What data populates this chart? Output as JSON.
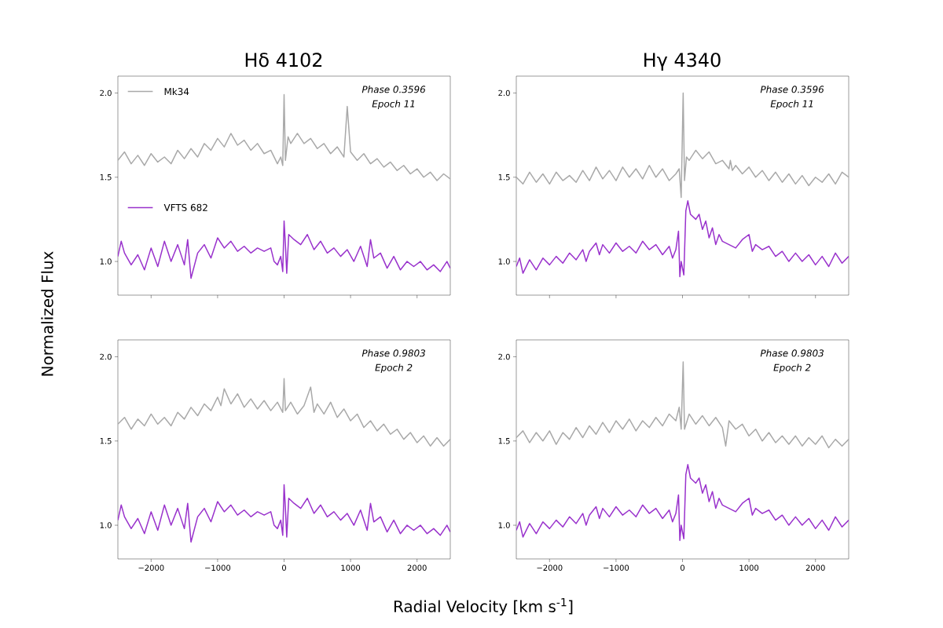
{
  "chart_data": [
    {
      "type": "line",
      "title": "Hδ 4102",
      "ylabel": "Normalized Flux",
      "xlim": [
        -2500,
        2500
      ],
      "ylim": [
        0.8,
        2.1
      ],
      "xticks": [
        {
          "value": -2000,
          "label": null
        },
        {
          "value": -1000,
          "label": null
        },
        {
          "value": 0,
          "label": null
        },
        {
          "value": 1000,
          "label": null
        },
        {
          "value": 2000,
          "label": null
        }
      ],
      "yticks": [
        {
          "value": 1,
          "label": "1.0"
        },
        {
          "value": 1.5,
          "label": "1.5"
        },
        {
          "value": 2,
          "label": "2.0"
        }
      ],
      "tick_labels": "y",
      "legend": "top left",
      "annotations": [
        "Phase 0.3596",
        "Epoch 11"
      ],
      "series": [
        {
          "name": "Mk34",
          "color": "#a9a9a9",
          "x": [
            -2500,
            -2400,
            -2300,
            -2200,
            -2100,
            -2000,
            -1900,
            -1800,
            -1700,
            -1600,
            -1500,
            -1400,
            -1300,
            -1200,
            -1100,
            -1000,
            -900,
            -800,
            -700,
            -600,
            -500,
            -400,
            -300,
            -200,
            -100,
            -50,
            -20,
            0,
            20,
            60,
            100,
            200,
            300,
            400,
            500,
            600,
            700,
            800,
            900,
            950,
            1000,
            1100,
            1200,
            1300,
            1400,
            1500,
            1600,
            1700,
            1800,
            1900,
            2000,
            2100,
            2200,
            2300,
            2400,
            2500
          ],
          "values": [
            1.6,
            1.65,
            1.58,
            1.63,
            1.57,
            1.64,
            1.59,
            1.62,
            1.58,
            1.66,
            1.61,
            1.67,
            1.62,
            1.7,
            1.66,
            1.73,
            1.68,
            1.76,
            1.69,
            1.72,
            1.66,
            1.7,
            1.64,
            1.66,
            1.58,
            1.62,
            1.57,
            1.99,
            1.6,
            1.74,
            1.7,
            1.76,
            1.7,
            1.73,
            1.67,
            1.7,
            1.64,
            1.68,
            1.62,
            1.92,
            1.65,
            1.6,
            1.64,
            1.58,
            1.61,
            1.56,
            1.59,
            1.54,
            1.57,
            1.52,
            1.55,
            1.5,
            1.53,
            1.48,
            1.52,
            1.49
          ]
        },
        {
          "name": "VFTS 682",
          "color": "#9932cc",
          "x": [
            -2500,
            -2450,
            -2400,
            -2300,
            -2200,
            -2100,
            -2000,
            -1900,
            -1800,
            -1700,
            -1600,
            -1500,
            -1450,
            -1400,
            -1300,
            -1200,
            -1100,
            -1000,
            -900,
            -800,
            -700,
            -600,
            -500,
            -400,
            -300,
            -200,
            -150,
            -100,
            -50,
            -20,
            0,
            20,
            40,
            70,
            150,
            250,
            350,
            450,
            550,
            650,
            750,
            850,
            950,
            1050,
            1150,
            1250,
            1300,
            1350,
            1450,
            1550,
            1650,
            1750,
            1850,
            1950,
            2050,
            2150,
            2250,
            2350,
            2450,
            2500
          ],
          "values": [
            1.03,
            1.12,
            1.05,
            0.98,
            1.04,
            0.95,
            1.08,
            0.97,
            1.12,
            1.0,
            1.1,
            0.98,
            1.13,
            0.9,
            1.05,
            1.1,
            1.02,
            1.14,
            1.08,
            1.12,
            1.06,
            1.09,
            1.05,
            1.08,
            1.06,
            1.08,
            1.0,
            0.98,
            1.03,
            0.94,
            1.24,
            1.1,
            0.93,
            1.16,
            1.13,
            1.1,
            1.16,
            1.07,
            1.12,
            1.05,
            1.08,
            1.03,
            1.07,
            1.0,
            1.09,
            0.97,
            1.13,
            1.02,
            1.05,
            0.96,
            1.03,
            0.95,
            1.0,
            0.97,
            1.0,
            0.95,
            0.98,
            0.94,
            1.0,
            0.96
          ]
        }
      ]
    },
    {
      "type": "line",
      "title": "Hγ 4340",
      "xlim": [
        -2500,
        2500
      ],
      "ylim": [
        0.8,
        2.1
      ],
      "xticks": [
        {
          "value": -2000,
          "label": null
        },
        {
          "value": -1000,
          "label": null
        },
        {
          "value": 0,
          "label": null
        },
        {
          "value": 1000,
          "label": null
        },
        {
          "value": 2000,
          "label": null
        }
      ],
      "yticks": [
        {
          "value": 1,
          "label": "1.0"
        },
        {
          "value": 1.5,
          "label": "1.5"
        },
        {
          "value": 2,
          "label": "2.0"
        }
      ],
      "tick_labels": "y",
      "annotations": [
        "Phase 0.3596",
        "Epoch 11"
      ],
      "series": [
        {
          "color": "#a9a9a9",
          "x": [
            -2500,
            -2400,
            -2300,
            -2200,
            -2100,
            -2000,
            -1900,
            -1800,
            -1700,
            -1600,
            -1500,
            -1400,
            -1300,
            -1200,
            -1100,
            -1000,
            -900,
            -800,
            -700,
            -600,
            -500,
            -400,
            -300,
            -200,
            -100,
            -50,
            -20,
            10,
            30,
            60,
            100,
            200,
            300,
            400,
            500,
            600,
            700,
            720,
            750,
            800,
            900,
            1000,
            1100,
            1200,
            1300,
            1400,
            1500,
            1600,
            1700,
            1800,
            1900,
            2000,
            2100,
            2200,
            2300,
            2400,
            2500
          ],
          "values": [
            1.5,
            1.46,
            1.53,
            1.47,
            1.52,
            1.46,
            1.53,
            1.48,
            1.51,
            1.47,
            1.54,
            1.48,
            1.56,
            1.49,
            1.54,
            1.48,
            1.56,
            1.5,
            1.55,
            1.49,
            1.57,
            1.5,
            1.55,
            1.48,
            1.52,
            1.55,
            1.38,
            2.0,
            1.48,
            1.62,
            1.6,
            1.66,
            1.61,
            1.65,
            1.58,
            1.6,
            1.55,
            1.6,
            1.54,
            1.57,
            1.52,
            1.56,
            1.5,
            1.54,
            1.48,
            1.53,
            1.47,
            1.52,
            1.46,
            1.51,
            1.45,
            1.5,
            1.47,
            1.52,
            1.46,
            1.53,
            1.5
          ]
        },
        {
          "color": "#9932cc",
          "x": [
            -2500,
            -2450,
            -2400,
            -2300,
            -2200,
            -2100,
            -2000,
            -1900,
            -1800,
            -1700,
            -1600,
            -1500,
            -1450,
            -1400,
            -1300,
            -1250,
            -1200,
            -1100,
            -1000,
            -900,
            -800,
            -700,
            -600,
            -500,
            -400,
            -300,
            -200,
            -150,
            -100,
            -60,
            -40,
            -20,
            20,
            50,
            80,
            120,
            200,
            250,
            300,
            350,
            400,
            450,
            500,
            550,
            600,
            700,
            800,
            900,
            1000,
            1050,
            1100,
            1200,
            1300,
            1400,
            1500,
            1600,
            1700,
            1800,
            1900,
            2000,
            2100,
            2200,
            2300,
            2400,
            2500
          ],
          "values": [
            0.97,
            1.02,
            0.93,
            1.01,
            0.95,
            1.02,
            0.98,
            1.03,
            0.99,
            1.05,
            1.01,
            1.07,
            1.0,
            1.06,
            1.11,
            1.04,
            1.1,
            1.05,
            1.11,
            1.06,
            1.09,
            1.05,
            1.12,
            1.07,
            1.1,
            1.04,
            1.09,
            1.02,
            1.07,
            1.18,
            0.91,
            1.0,
            0.92,
            1.3,
            1.36,
            1.28,
            1.25,
            1.28,
            1.19,
            1.24,
            1.14,
            1.2,
            1.1,
            1.16,
            1.12,
            1.1,
            1.08,
            1.13,
            1.16,
            1.06,
            1.1,
            1.07,
            1.09,
            1.03,
            1.06,
            1.0,
            1.05,
            1.0,
            1.04,
            0.98,
            1.03,
            0.97,
            1.05,
            0.99,
            1.03
          ]
        }
      ]
    },
    {
      "type": "line",
      "xlabel": "Radial Velocity [km s$^{-1}$]",
      "xlim": [
        -2500,
        2500
      ],
      "ylim": [
        0.8,
        2.1
      ],
      "xticks": [
        {
          "value": -2000,
          "label": "−2000"
        },
        {
          "value": -1000,
          "label": "−1000"
        },
        {
          "value": 0,
          "label": "0"
        },
        {
          "value": 1000,
          "label": "1000"
        },
        {
          "value": 2000,
          "label": "2000"
        }
      ],
      "yticks": [
        {
          "value": 1,
          "label": "1.0"
        },
        {
          "value": 1.5,
          "label": "1.5"
        },
        {
          "value": 2,
          "label": "2.0"
        }
      ],
      "annotations": [
        "Phase 0.9803",
        "Epoch 2"
      ],
      "series": [
        {
          "color": "#a9a9a9",
          "x": [
            -2500,
            -2400,
            -2300,
            -2200,
            -2100,
            -2000,
            -1900,
            -1800,
            -1700,
            -1600,
            -1500,
            -1400,
            -1300,
            -1200,
            -1100,
            -1000,
            -950,
            -900,
            -800,
            -700,
            -600,
            -500,
            -400,
            -300,
            -200,
            -100,
            -20,
            0,
            20,
            100,
            200,
            300,
            400,
            450,
            500,
            600,
            700,
            800,
            900,
            1000,
            1100,
            1200,
            1300,
            1400,
            1500,
            1600,
            1700,
            1800,
            1900,
            2000,
            2100,
            2200,
            2300,
            2400,
            2500
          ],
          "values": [
            1.6,
            1.64,
            1.57,
            1.63,
            1.59,
            1.66,
            1.6,
            1.64,
            1.59,
            1.67,
            1.63,
            1.7,
            1.65,
            1.72,
            1.68,
            1.76,
            1.71,
            1.81,
            1.72,
            1.78,
            1.7,
            1.75,
            1.69,
            1.74,
            1.68,
            1.73,
            1.67,
            1.87,
            1.68,
            1.73,
            1.66,
            1.71,
            1.82,
            1.67,
            1.72,
            1.66,
            1.73,
            1.64,
            1.69,
            1.62,
            1.66,
            1.58,
            1.62,
            1.56,
            1.6,
            1.54,
            1.57,
            1.51,
            1.55,
            1.49,
            1.53,
            1.47,
            1.52,
            1.47,
            1.51
          ]
        },
        {
          "color": "#9932cc",
          "x": [
            -2500,
            -2450,
            -2400,
            -2300,
            -2200,
            -2100,
            -2000,
            -1900,
            -1800,
            -1700,
            -1600,
            -1500,
            -1450,
            -1400,
            -1300,
            -1200,
            -1100,
            -1000,
            -900,
            -800,
            -700,
            -600,
            -500,
            -400,
            -300,
            -200,
            -150,
            -100,
            -50,
            -20,
            0,
            20,
            40,
            70,
            150,
            250,
            350,
            450,
            550,
            650,
            750,
            850,
            950,
            1050,
            1150,
            1250,
            1300,
            1350,
            1450,
            1550,
            1650,
            1750,
            1850,
            1950,
            2050,
            2150,
            2250,
            2350,
            2450,
            2500
          ],
          "values": [
            1.03,
            1.12,
            1.05,
            0.98,
            1.04,
            0.95,
            1.08,
            0.97,
            1.12,
            1.0,
            1.1,
            0.98,
            1.13,
            0.9,
            1.05,
            1.1,
            1.02,
            1.14,
            1.08,
            1.12,
            1.06,
            1.09,
            1.05,
            1.08,
            1.06,
            1.08,
            1.0,
            0.98,
            1.03,
            0.94,
            1.24,
            1.1,
            0.93,
            1.16,
            1.13,
            1.1,
            1.16,
            1.07,
            1.12,
            1.05,
            1.08,
            1.03,
            1.07,
            1.0,
            1.09,
            0.97,
            1.13,
            1.02,
            1.05,
            0.96,
            1.03,
            0.95,
            1.0,
            0.97,
            1.0,
            0.95,
            0.98,
            0.94,
            1.0,
            0.96
          ]
        }
      ]
    },
    {
      "type": "line",
      "xlim": [
        -2500,
        2500
      ],
      "ylim": [
        0.8,
        2.1
      ],
      "xticks": [
        {
          "value": -2000,
          "label": "−2000"
        },
        {
          "value": -1000,
          "label": "−1000"
        },
        {
          "value": 0,
          "label": "0"
        },
        {
          "value": 1000,
          "label": "1000"
        },
        {
          "value": 2000,
          "label": "2000"
        }
      ],
      "yticks": [
        {
          "value": 1,
          "label": "1.0"
        },
        {
          "value": 1.5,
          "label": "1.5"
        },
        {
          "value": 2,
          "label": "2.0"
        }
      ],
      "annotations": [
        "Phase 0.9803",
        "Epoch 2"
      ],
      "series": [
        {
          "color": "#a9a9a9",
          "x": [
            -2500,
            -2400,
            -2300,
            -2200,
            -2100,
            -2000,
            -1900,
            -1800,
            -1700,
            -1600,
            -1500,
            -1400,
            -1300,
            -1200,
            -1100,
            -1000,
            -900,
            -800,
            -700,
            -600,
            -500,
            -400,
            -300,
            -200,
            -100,
            -50,
            -20,
            10,
            30,
            100,
            200,
            300,
            400,
            500,
            600,
            650,
            700,
            800,
            900,
            1000,
            1100,
            1200,
            1300,
            1400,
            1500,
            1600,
            1700,
            1800,
            1900,
            2000,
            2100,
            2200,
            2300,
            2400,
            2500
          ],
          "values": [
            1.52,
            1.56,
            1.49,
            1.55,
            1.5,
            1.56,
            1.48,
            1.55,
            1.51,
            1.58,
            1.52,
            1.59,
            1.54,
            1.61,
            1.55,
            1.62,
            1.57,
            1.63,
            1.56,
            1.62,
            1.58,
            1.64,
            1.59,
            1.66,
            1.62,
            1.7,
            1.57,
            1.97,
            1.57,
            1.66,
            1.6,
            1.65,
            1.59,
            1.64,
            1.58,
            1.47,
            1.62,
            1.57,
            1.6,
            1.53,
            1.57,
            1.5,
            1.55,
            1.49,
            1.53,
            1.48,
            1.53,
            1.47,
            1.52,
            1.48,
            1.53,
            1.46,
            1.51,
            1.47,
            1.51
          ]
        },
        {
          "color": "#9932cc",
          "x": [
            -2500,
            -2450,
            -2400,
            -2300,
            -2200,
            -2100,
            -2000,
            -1900,
            -1800,
            -1700,
            -1600,
            -1500,
            -1450,
            -1400,
            -1300,
            -1250,
            -1200,
            -1100,
            -1000,
            -900,
            -800,
            -700,
            -600,
            -500,
            -400,
            -300,
            -200,
            -150,
            -100,
            -60,
            -40,
            -20,
            20,
            50,
            80,
            120,
            200,
            250,
            300,
            350,
            400,
            450,
            500,
            550,
            600,
            700,
            800,
            900,
            1000,
            1050,
            1100,
            1200,
            1300,
            1400,
            1500,
            1600,
            1700,
            1800,
            1900,
            2000,
            2100,
            2200,
            2300,
            2400,
            2500
          ],
          "values": [
            0.97,
            1.02,
            0.93,
            1.01,
            0.95,
            1.02,
            0.98,
            1.03,
            0.99,
            1.05,
            1.01,
            1.07,
            1.0,
            1.06,
            1.11,
            1.04,
            1.1,
            1.05,
            1.11,
            1.06,
            1.09,
            1.05,
            1.12,
            1.07,
            1.1,
            1.04,
            1.09,
            1.02,
            1.07,
            1.18,
            0.91,
            1.0,
            0.92,
            1.3,
            1.36,
            1.28,
            1.25,
            1.28,
            1.19,
            1.24,
            1.14,
            1.2,
            1.1,
            1.16,
            1.12,
            1.1,
            1.08,
            1.13,
            1.16,
            1.06,
            1.1,
            1.07,
            1.09,
            1.03,
            1.06,
            1.0,
            1.05,
            1.0,
            1.04,
            0.98,
            1.03,
            0.97,
            1.05,
            0.99,
            1.03
          ]
        }
      ]
    }
  ]
}
